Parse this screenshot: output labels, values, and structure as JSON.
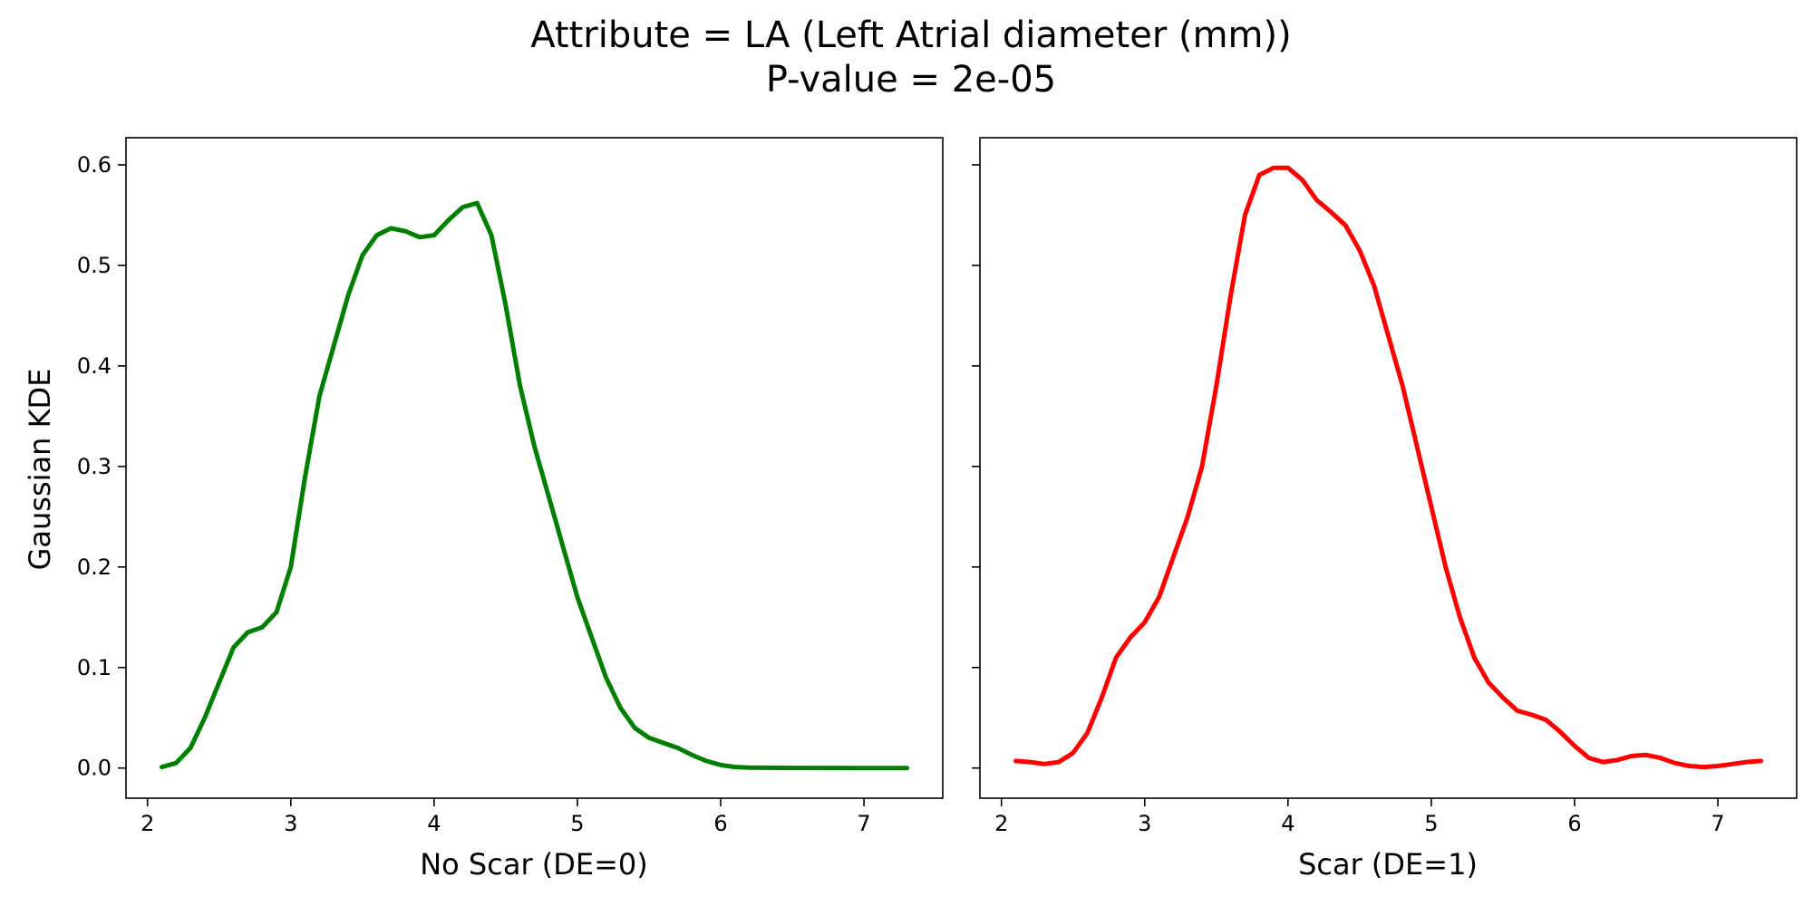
{
  "figure": {
    "title_line1": "Attribute = LA (Left Atrial diameter (mm))",
    "title_line2": "P-value = 2e-05",
    "ylabel": "Gaussian KDE"
  },
  "chart_data": [
    {
      "type": "line",
      "xlabel": "No Scar (DE=0)",
      "ylabel": "Gaussian KDE",
      "xlim": [
        1.85,
        7.55
      ],
      "ylim": [
        -0.03,
        0.627
      ],
      "xticks": [
        "2",
        "3",
        "4",
        "5",
        "6",
        "7"
      ],
      "yticks": [
        "0.0",
        "0.1",
        "0.2",
        "0.3",
        "0.4",
        "0.5",
        "0.6"
      ],
      "grid": false,
      "series": [
        {
          "color": "#008000",
          "x": [
            2.1,
            2.2,
            2.3,
            2.4,
            2.5,
            2.6,
            2.7,
            2.8,
            2.9,
            3.0,
            3.1,
            3.2,
            3.3,
            3.4,
            3.5,
            3.6,
            3.7,
            3.8,
            3.9,
            4.0,
            4.1,
            4.2,
            4.3,
            4.4,
            4.5,
            4.6,
            4.7,
            4.8,
            4.9,
            5.0,
            5.1,
            5.2,
            5.3,
            5.4,
            5.5,
            5.6,
            5.7,
            5.8,
            5.9,
            6.0,
            6.1,
            6.2,
            6.3,
            6.5,
            7.0,
            7.3
          ],
          "values": [
            0.001,
            0.005,
            0.02,
            0.05,
            0.085,
            0.12,
            0.135,
            0.14,
            0.155,
            0.2,
            0.29,
            0.37,
            0.42,
            0.47,
            0.51,
            0.53,
            0.537,
            0.534,
            0.528,
            0.53,
            0.545,
            0.558,
            0.562,
            0.53,
            0.46,
            0.38,
            0.32,
            0.27,
            0.22,
            0.17,
            0.13,
            0.09,
            0.06,
            0.04,
            0.03,
            0.025,
            0.02,
            0.013,
            0.007,
            0.003,
            0.001,
            0.0005,
            0.0003,
            0.0001,
            0.0,
            0.0
          ]
        }
      ]
    },
    {
      "type": "line",
      "xlabel": "Scar (DE=1)",
      "xlim": [
        1.85,
        7.55
      ],
      "ylim": [
        -0.03,
        0.627
      ],
      "xticks": [
        "2",
        "3",
        "4",
        "5",
        "6",
        "7"
      ],
      "grid": false,
      "series": [
        {
          "color": "#ff0000",
          "x": [
            2.1,
            2.2,
            2.3,
            2.4,
            2.5,
            2.6,
            2.7,
            2.8,
            2.9,
            3.0,
            3.1,
            3.2,
            3.3,
            3.4,
            3.5,
            3.6,
            3.7,
            3.8,
            3.9,
            4.0,
            4.1,
            4.2,
            4.3,
            4.4,
            4.5,
            4.6,
            4.7,
            4.8,
            4.9,
            5.0,
            5.1,
            5.2,
            5.3,
            5.4,
            5.5,
            5.6,
            5.7,
            5.8,
            5.9,
            6.0,
            6.1,
            6.2,
            6.3,
            6.4,
            6.5,
            6.6,
            6.7,
            6.8,
            6.9,
            7.0,
            7.1,
            7.2,
            7.3
          ],
          "values": [
            0.007,
            0.006,
            0.004,
            0.006,
            0.015,
            0.035,
            0.07,
            0.11,
            0.13,
            0.145,
            0.17,
            0.21,
            0.25,
            0.3,
            0.38,
            0.47,
            0.55,
            0.59,
            0.597,
            0.597,
            0.585,
            0.565,
            0.553,
            0.54,
            0.515,
            0.48,
            0.43,
            0.38,
            0.32,
            0.26,
            0.2,
            0.15,
            0.11,
            0.085,
            0.07,
            0.057,
            0.053,
            0.048,
            0.036,
            0.022,
            0.01,
            0.006,
            0.008,
            0.012,
            0.013,
            0.01,
            0.005,
            0.002,
            0.001,
            0.002,
            0.004,
            0.006,
            0.007
          ]
        }
      ]
    }
  ]
}
